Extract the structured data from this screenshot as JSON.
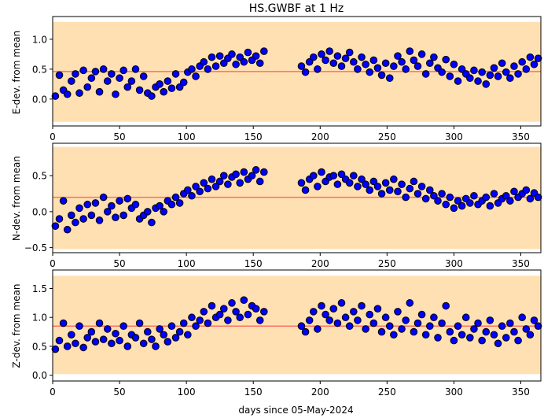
{
  "title": "HS.GWBF at 1 Hz",
  "colors": {
    "band": "#ffe0b2",
    "mean_line": "#ff6f61",
    "marker_fill": "#0000ff",
    "marker_edge": "#000000"
  },
  "chart_data": [
    {
      "type": "scatter",
      "id": "east",
      "ylabel": "E-dev. from mean",
      "xlabel": "",
      "xlim": [
        0,
        365
      ],
      "ylim": [
        -0.45,
        1.38
      ],
      "xticks": [
        0,
        50,
        100,
        150,
        200,
        250,
        300,
        350
      ],
      "yticks": [
        0.0,
        0.5,
        1.0
      ],
      "ytick_labels": [
        "0.0",
        "0.5",
        "1.0"
      ],
      "band": [
        -0.38,
        1.29
      ],
      "mean": 0.46,
      "series": [
        {
          "x": [
            2,
            5,
            8,
            11,
            14,
            17,
            20,
            23,
            26,
            29,
            32,
            35,
            38,
            41,
            44,
            47,
            50,
            53,
            56,
            59,
            62,
            65,
            68,
            71,
            74,
            77,
            80,
            83,
            86,
            89,
            92,
            95,
            98,
            101,
            104,
            107,
            110,
            113,
            116,
            119,
            122,
            125,
            128,
            131,
            134,
            137,
            140,
            143,
            146,
            149,
            152,
            155,
            158,
            186,
            189,
            192,
            195,
            198,
            201,
            204,
            207,
            210,
            213,
            216,
            219,
            222,
            225,
            228,
            231,
            234,
            237,
            240,
            243,
            246,
            249,
            252,
            255,
            258,
            261,
            264,
            267,
            270,
            273,
            276,
            279,
            282,
            285,
            288,
            291,
            294,
            297,
            300,
            303,
            306,
            309,
            312,
            315,
            318,
            321,
            324,
            327,
            330,
            333,
            336,
            339,
            342,
            345,
            348,
            351,
            354,
            357,
            360,
            363
          ],
          "y": [
            0.05,
            0.4,
            0.15,
            0.08,
            0.3,
            0.42,
            0.1,
            0.48,
            0.2,
            0.35,
            0.46,
            0.12,
            0.5,
            0.3,
            0.42,
            0.08,
            0.35,
            0.48,
            0.2,
            0.3,
            0.5,
            0.15,
            0.38,
            0.1,
            0.05,
            0.2,
            0.25,
            0.12,
            0.3,
            0.18,
            0.42,
            0.2,
            0.28,
            0.45,
            0.5,
            0.38,
            0.55,
            0.62,
            0.5,
            0.7,
            0.55,
            0.72,
            0.6,
            0.68,
            0.75,
            0.58,
            0.7,
            0.62,
            0.78,
            0.65,
            0.72,
            0.6,
            0.8,
            0.55,
            0.45,
            0.62,
            0.7,
            0.5,
            0.75,
            0.65,
            0.8,
            0.6,
            0.72,
            0.55,
            0.68,
            0.78,
            0.62,
            0.5,
            0.7,
            0.58,
            0.45,
            0.65,
            0.52,
            0.4,
            0.6,
            0.35,
            0.55,
            0.72,
            0.62,
            0.5,
            0.8,
            0.65,
            0.55,
            0.75,
            0.42,
            0.6,
            0.7,
            0.52,
            0.45,
            0.66,
            0.38,
            0.58,
            0.3,
            0.5,
            0.42,
            0.35,
            0.48,
            0.3,
            0.45,
            0.25,
            0.4,
            0.52,
            0.38,
            0.6,
            0.45,
            0.35,
            0.55,
            0.42,
            0.62,
            0.5,
            0.7,
            0.58,
            0.68
          ]
        }
      ]
    },
    {
      "type": "scatter",
      "id": "north",
      "ylabel": "N-dev. from mean",
      "xlabel": "",
      "xlim": [
        0,
        365
      ],
      "ylim": [
        -0.57,
        0.95
      ],
      "xticks": [
        0,
        50,
        100,
        150,
        200,
        250,
        300,
        350
      ],
      "yticks": [
        -0.5,
        0.0,
        0.5
      ],
      "ytick_labels": [
        "−0.5",
        "0.0",
        "0.5"
      ],
      "band": [
        -0.52,
        0.9
      ],
      "mean": 0.2,
      "series": [
        {
          "x": [
            2,
            5,
            8,
            11,
            14,
            17,
            20,
            23,
            26,
            29,
            32,
            35,
            38,
            41,
            44,
            47,
            50,
            53,
            56,
            59,
            62,
            65,
            68,
            71,
            74,
            77,
            80,
            83,
            86,
            89,
            92,
            95,
            98,
            101,
            104,
            107,
            110,
            113,
            116,
            119,
            122,
            125,
            128,
            131,
            134,
            137,
            140,
            143,
            146,
            149,
            152,
            155,
            158,
            186,
            189,
            192,
            195,
            198,
            201,
            204,
            207,
            210,
            213,
            216,
            219,
            222,
            225,
            228,
            231,
            234,
            237,
            240,
            243,
            246,
            249,
            252,
            255,
            258,
            261,
            264,
            267,
            270,
            273,
            276,
            279,
            282,
            285,
            288,
            291,
            294,
            297,
            300,
            303,
            306,
            309,
            312,
            315,
            318,
            321,
            324,
            327,
            330,
            333,
            336,
            339,
            342,
            345,
            348,
            351,
            354,
            357,
            360,
            363
          ],
          "y": [
            -0.2,
            -0.1,
            0.15,
            -0.25,
            -0.05,
            -0.15,
            0.05,
            -0.1,
            0.1,
            -0.05,
            0.12,
            -0.12,
            0.2,
            0.0,
            0.08,
            -0.08,
            0.15,
            -0.05,
            0.18,
            0.05,
            0.1,
            -0.1,
            -0.05,
            0.0,
            -0.15,
            0.05,
            0.08,
            0.0,
            0.15,
            0.1,
            0.2,
            0.12,
            0.25,
            0.3,
            0.22,
            0.35,
            0.28,
            0.4,
            0.32,
            0.45,
            0.35,
            0.42,
            0.5,
            0.38,
            0.48,
            0.52,
            0.4,
            0.55,
            0.45,
            0.5,
            0.58,
            0.42,
            0.55,
            0.4,
            0.3,
            0.45,
            0.5,
            0.35,
            0.55,
            0.42,
            0.48,
            0.5,
            0.38,
            0.52,
            0.45,
            0.4,
            0.5,
            0.35,
            0.45,
            0.38,
            0.3,
            0.42,
            0.35,
            0.25,
            0.4,
            0.3,
            0.45,
            0.28,
            0.38,
            0.2,
            0.32,
            0.42,
            0.25,
            0.35,
            0.18,
            0.3,
            0.22,
            0.15,
            0.25,
            0.1,
            0.2,
            0.05,
            0.15,
            0.08,
            0.18,
            0.12,
            0.22,
            0.1,
            0.15,
            0.2,
            0.08,
            0.25,
            0.12,
            0.18,
            0.22,
            0.15,
            0.28,
            0.2,
            0.25,
            0.3,
            0.18,
            0.26,
            0.2
          ]
        }
      ]
    },
    {
      "type": "scatter",
      "id": "vertical",
      "ylabel": "Z-dev. from mean",
      "xlabel": "days since 05-May-2024",
      "xlim": [
        0,
        365
      ],
      "ylim": [
        -0.1,
        1.82
      ],
      "xticks": [
        0,
        50,
        100,
        150,
        200,
        250,
        300,
        350
      ],
      "yticks": [
        0.0,
        0.5,
        1.0,
        1.5
      ],
      "ytick_labels": [
        "0.0",
        "0.5",
        "1.0",
        "1.5"
      ],
      "band": [
        0.02,
        1.72
      ],
      "mean": 0.85,
      "series": [
        {
          "x": [
            2,
            5,
            8,
            11,
            14,
            17,
            20,
            23,
            26,
            29,
            32,
            35,
            38,
            41,
            44,
            47,
            50,
            53,
            56,
            59,
            62,
            65,
            68,
            71,
            74,
            77,
            80,
            83,
            86,
            89,
            92,
            95,
            98,
            101,
            104,
            107,
            110,
            113,
            116,
            119,
            122,
            125,
            128,
            131,
            134,
            137,
            140,
            143,
            146,
            149,
            152,
            155,
            158,
            186,
            189,
            192,
            195,
            198,
            201,
            204,
            207,
            210,
            213,
            216,
            219,
            222,
            225,
            228,
            231,
            234,
            237,
            240,
            243,
            246,
            249,
            252,
            255,
            258,
            261,
            264,
            267,
            270,
            273,
            276,
            279,
            282,
            285,
            288,
            291,
            294,
            297,
            300,
            303,
            306,
            309,
            312,
            315,
            318,
            321,
            324,
            327,
            330,
            333,
            336,
            339,
            342,
            345,
            348,
            351,
            354,
            357,
            360,
            363
          ],
          "y": [
            0.45,
            0.6,
            0.9,
            0.5,
            0.7,
            0.55,
            0.85,
            0.48,
            0.65,
            0.75,
            0.58,
            0.9,
            0.62,
            0.8,
            0.55,
            0.72,
            0.6,
            0.85,
            0.5,
            0.7,
            0.65,
            0.9,
            0.55,
            0.75,
            0.62,
            0.5,
            0.8,
            0.7,
            0.58,
            0.85,
            0.65,
            0.75,
            0.9,
            0.7,
            1.0,
            0.85,
            0.95,
            1.1,
            0.9,
            1.2,
            1.0,
            1.05,
            1.15,
            0.95,
            1.25,
            1.1,
            1.0,
            1.3,
            1.05,
            1.2,
            1.15,
            0.95,
            1.1,
            0.85,
            0.75,
            0.95,
            1.1,
            0.8,
            1.2,
            1.05,
            0.95,
            1.15,
            0.9,
            1.25,
            1.0,
            0.85,
            1.1,
            0.95,
            1.2,
            0.8,
            1.05,
            0.9,
            1.15,
            0.75,
            1.0,
            0.85,
            0.7,
            1.1,
            0.8,
            0.95,
            1.25,
            0.75,
            0.9,
            1.05,
            0.7,
            0.85,
            1.0,
            0.65,
            0.9,
            1.2,
            0.75,
            0.6,
            0.85,
            0.7,
            1.0,
            0.65,
            0.8,
            0.9,
            0.6,
            0.75,
            0.95,
            0.7,
            0.55,
            0.85,
            0.65,
            0.9,
            0.75,
            0.6,
            1.0,
            0.8,
            0.7,
            0.95,
            0.85
          ]
        }
      ]
    }
  ]
}
